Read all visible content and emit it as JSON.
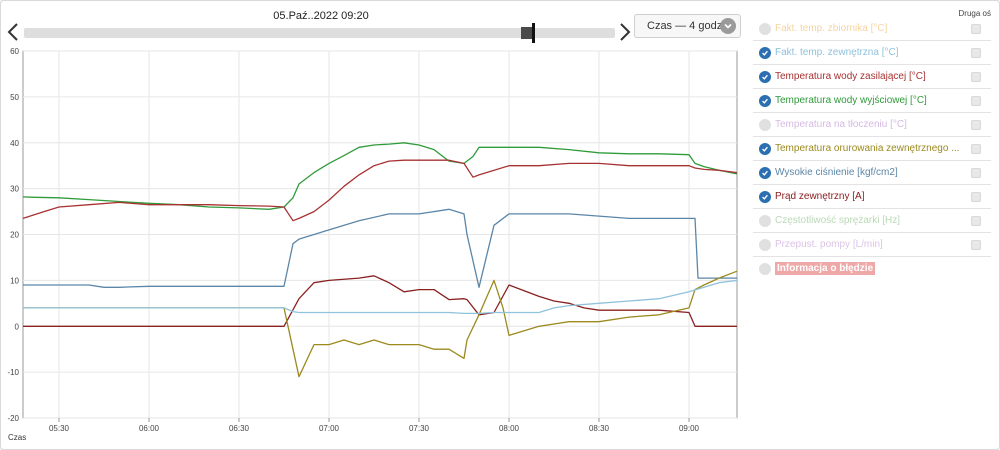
{
  "header": {
    "date_label": "05.Paź..2022 09:20",
    "period_label": "Czas — 4 godz."
  },
  "colors": {
    "check_on": "#2b6fb0",
    "check_off": "#e0e0e0"
  },
  "legend": {
    "second_axis_header": "Druga oś",
    "items": [
      {
        "label": "Fakt. temp. zbiornika [°C]",
        "color": "#f0b765",
        "checked": false
      },
      {
        "label": "Fakt. temp. zewnętrzna [°C]",
        "color": "#8fc2dc",
        "checked": true
      },
      {
        "label": "Temperatura wody zasilającej [°C]",
        "color": "#a83232",
        "checked": true
      },
      {
        "label": "Temperatura wody wyjściowej [°C]",
        "color": "#2f9b3a",
        "checked": true
      },
      {
        "label": "Temperatura na tłoczeniu [°C]",
        "color": "#b98bd1",
        "checked": false
      },
      {
        "label": "Temperatura orurowania zewnętrznego ...",
        "color": "#9c8a1e",
        "checked": true
      },
      {
        "label": "Wysokie ciśnienie [kgf/cm2]",
        "color": "#5b86a8",
        "checked": true
      },
      {
        "label": "Prąd zewnętrzny [A]",
        "color": "#8a2020",
        "checked": true
      },
      {
        "label": "Częstotliwość sprężarki [Hz]",
        "color": "#8cbf86",
        "checked": false
      },
      {
        "label": "Przepust. pompy [L/min]",
        "color": "#c39bd8",
        "checked": false
      }
    ],
    "error_label": "Informacja o błędzie"
  },
  "chart_data": {
    "type": "line",
    "xlabel": "Czas",
    "x_ticks": [
      "05:30",
      "06:00",
      "06:30",
      "07:00",
      "07:30",
      "08:00",
      "08:30",
      "09:00"
    ],
    "x_tick_minutes": [
      330,
      360,
      390,
      420,
      450,
      480,
      510,
      540
    ],
    "xlim": [
      318,
      556
    ],
    "ylim": [
      -20,
      60
    ],
    "y_ticks": [
      -20,
      -10,
      0,
      10,
      20,
      30,
      40,
      50,
      60
    ],
    "grid": true,
    "series": [
      {
        "name": "Temperatura wody wyjściowej [°C]",
        "color": "#2f9b3a",
        "x": [
          318,
          322,
          330,
          340,
          350,
          360,
          370,
          380,
          390,
          400,
          405,
          408,
          410,
          415,
          420,
          425,
          430,
          435,
          440,
          445,
          450,
          455,
          460,
          465,
          468,
          470,
          480,
          490,
          500,
          510,
          520,
          530,
          540,
          542,
          545,
          550,
          556
        ],
        "y": [
          28.2,
          28.1,
          28,
          27.6,
          27.2,
          26.8,
          26.5,
          26,
          25.8,
          25.5,
          26,
          28,
          31,
          33.5,
          35.5,
          37.2,
          39,
          39.5,
          39.7,
          40,
          39.5,
          38.5,
          36,
          35.5,
          37,
          39,
          39,
          39,
          38.5,
          37.8,
          37.6,
          37.6,
          37.4,
          35.5,
          34.8,
          34,
          33.2
        ]
      },
      {
        "name": "Temperatura wody zasilającej [°C]",
        "color": "#a83232",
        "x": [
          318,
          325,
          330,
          340,
          350,
          360,
          370,
          380,
          390,
          400,
          405,
          408,
          410,
          415,
          420,
          425,
          430,
          435,
          440,
          445,
          450,
          455,
          460,
          465,
          468,
          470,
          480,
          490,
          500,
          510,
          520,
          530,
          540,
          542,
          545,
          550,
          556
        ],
        "y": [
          23.5,
          25,
          26,
          26.5,
          27,
          26.5,
          26.5,
          26.5,
          26.3,
          26.2,
          26,
          23,
          23.5,
          25,
          27.5,
          30.5,
          33,
          35,
          36,
          36.2,
          36.2,
          36.2,
          36.2,
          35.5,
          32.5,
          33,
          35,
          35,
          35.5,
          35.5,
          35,
          35,
          35,
          34.5,
          34.2,
          34,
          33.5
        ]
      },
      {
        "name": "Wysokie ciśnienie [kgf/cm2]",
        "color": "#5b86a8",
        "x": [
          318,
          330,
          340,
          345,
          350,
          360,
          370,
          380,
          390,
          400,
          405,
          408,
          410,
          415,
          420,
          430,
          440,
          450,
          460,
          465,
          466,
          470,
          475,
          480,
          490,
          500,
          510,
          520,
          530,
          540,
          542,
          543,
          545,
          550,
          556
        ],
        "y": [
          9,
          9,
          9,
          8.5,
          8.5,
          8.7,
          8.7,
          8.7,
          8.7,
          8.7,
          8.7,
          18,
          19,
          20,
          21,
          23,
          24.5,
          24.5,
          25.5,
          24.5,
          20,
          8.5,
          22,
          24.5,
          24.5,
          24.5,
          24,
          23.5,
          23.5,
          23.5,
          23.5,
          10.5,
          10.5,
          10.5,
          10.5
        ]
      },
      {
        "name": "Prąd zewnętrzny [A]",
        "color": "#8a2020",
        "x": [
          318,
          330,
          340,
          350,
          360,
          370,
          380,
          390,
          400,
          405,
          410,
          415,
          420,
          430,
          435,
          440,
          445,
          450,
          455,
          460,
          465,
          466,
          470,
          475,
          480,
          490,
          495,
          500,
          505,
          510,
          520,
          530,
          540,
          542,
          545,
          550,
          556
        ],
        "y": [
          0,
          0,
          0,
          0,
          0,
          0,
          0,
          0,
          0,
          0,
          6,
          9.5,
          10,
          10.5,
          11,
          9.5,
          7.5,
          8,
          8,
          5.8,
          6,
          5.8,
          2.5,
          3,
          9,
          6.5,
          5.5,
          5,
          4,
          3.5,
          3.5,
          3.5,
          3,
          0,
          0,
          0,
          0
        ]
      },
      {
        "name": "Temperatura orurowania zewnętrznego ...",
        "color": "#9c8a1e",
        "x": [
          318,
          330,
          340,
          350,
          360,
          370,
          380,
          390,
          400,
          405,
          408,
          410,
          415,
          420,
          425,
          430,
          435,
          440,
          445,
          450,
          455,
          460,
          465,
          466,
          470,
          475,
          478,
          480,
          490,
          495,
          500,
          505,
          510,
          520,
          530,
          540,
          542,
          545,
          550,
          556
        ],
        "y": [
          4,
          4,
          4,
          4,
          4,
          4,
          4,
          4,
          4,
          4,
          -5,
          -11,
          -4,
          -4,
          -3,
          -4,
          -3,
          -4,
          -4,
          -4,
          -5,
          -5,
          -7,
          -3,
          2.5,
          10,
          4,
          -2,
          0,
          0.5,
          1,
          1,
          1,
          2,
          2.5,
          4,
          8,
          9,
          10.5,
          12
        ]
      },
      {
        "name": "Fakt. temp. zewnętrzna [°C]",
        "color": "#8fc2dc",
        "x": [
          318,
          330,
          340,
          350,
          360,
          370,
          380,
          390,
          400,
          405,
          408,
          410,
          420,
          430,
          440,
          450,
          460,
          465,
          470,
          475,
          480,
          490,
          495,
          500,
          510,
          520,
          530,
          540,
          545,
          550,
          556
        ],
        "y": [
          4,
          4,
          4,
          4,
          4,
          4,
          4,
          4,
          4,
          4,
          3.2,
          3,
          3,
          3,
          3,
          3,
          3,
          2.8,
          2.8,
          3,
          3,
          3,
          4,
          4.5,
          5,
          5.5,
          6,
          7.5,
          8.5,
          9.5,
          10
        ]
      }
    ]
  }
}
